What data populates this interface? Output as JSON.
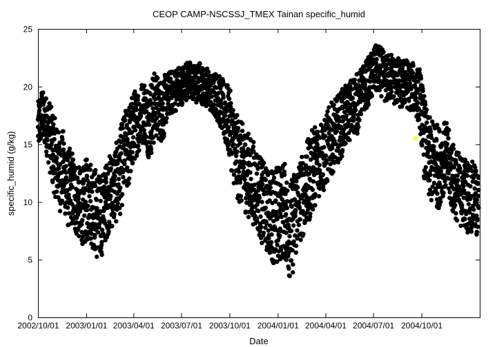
{
  "chart_data": {
    "type": "scatter",
    "title": "CEOP CAMP-NSCSSJ_TMEX Tainan  specific_humid",
    "xlabel": "Date",
    "ylabel": "specific_humid (g/kg)",
    "xlim": [
      "2002-10-01",
      "2005-01-20"
    ],
    "ylim": [
      0,
      25
    ],
    "grid": false,
    "legend": "none",
    "colors": {
      "points": "#000000",
      "highlight": "#ffff00"
    },
    "x_ticks": [
      "2002/10/01",
      "2003/01/01",
      "2003/04/01",
      "2003/07/01",
      "2003/10/01",
      "2004/01/01",
      "2004/04/01",
      "2004/07/01",
      "2004/10/01"
    ],
    "y_ticks": [
      "0",
      "5",
      "10",
      "15",
      "20",
      "25"
    ],
    "series": [
      {
        "marker": "filled-circle",
        "x": [
          "2002-10-01",
          "2002-10-08",
          "2002-10-15",
          "2002-10-22",
          "2002-10-29",
          "2002-11-05",
          "2002-11-12",
          "2002-11-19",
          "2002-11-26",
          "2002-12-03",
          "2002-12-10",
          "2002-12-17",
          "2002-12-24",
          "2002-12-31",
          "2003-01-07",
          "2003-01-14",
          "2003-01-21",
          "2003-01-28",
          "2003-02-04",
          "2003-02-11",
          "2003-02-18",
          "2003-02-25",
          "2003-03-04",
          "2003-03-11",
          "2003-03-18",
          "2003-03-25",
          "2003-04-01",
          "2003-04-08",
          "2003-04-15",
          "2003-04-22",
          "2003-04-29",
          "2003-05-06",
          "2003-05-13",
          "2003-05-20",
          "2003-05-27",
          "2003-06-03",
          "2003-06-10",
          "2003-06-17",
          "2003-06-24",
          "2003-07-01",
          "2003-07-08",
          "2003-07-15",
          "2003-07-22",
          "2003-07-29",
          "2003-08-05",
          "2003-08-12",
          "2003-08-19",
          "2003-08-26",
          "2003-09-02",
          "2003-09-09",
          "2003-09-16",
          "2003-09-23",
          "2003-09-30",
          "2003-10-07",
          "2003-10-14",
          "2003-10-21",
          "2003-10-28",
          "2003-11-04",
          "2003-11-11",
          "2003-11-18",
          "2003-11-25",
          "2003-12-02",
          "2003-12-09",
          "2003-12-16",
          "2003-12-23",
          "2003-12-30",
          "2004-01-06",
          "2004-01-13",
          "2004-01-20",
          "2004-01-27",
          "2004-02-03",
          "2004-02-10",
          "2004-02-17",
          "2004-02-24",
          "2004-03-02",
          "2004-03-09",
          "2004-03-16",
          "2004-03-23",
          "2004-03-30",
          "2004-04-06",
          "2004-04-13",
          "2004-04-20",
          "2004-04-27",
          "2004-05-04",
          "2004-05-11",
          "2004-05-18",
          "2004-05-25",
          "2004-06-01",
          "2004-06-08",
          "2004-06-15",
          "2004-06-22",
          "2004-06-29",
          "2004-07-06",
          "2004-07-13",
          "2004-07-20",
          "2004-07-27",
          "2004-08-03",
          "2004-08-10",
          "2004-08-17",
          "2004-08-24",
          "2004-08-31",
          "2004-09-07",
          "2004-09-14",
          "2004-09-21",
          "2004-09-28",
          "2004-10-05",
          "2004-10-12",
          "2004-10-19",
          "2004-10-26",
          "2004-11-02",
          "2004-11-09",
          "2004-11-16",
          "2004-11-23",
          "2004-11-30",
          "2004-12-07",
          "2004-12-14",
          "2004-12-21",
          "2004-12-28",
          "2005-01-04",
          "2005-01-11",
          "2005-01-18"
        ],
        "y": [
          16.5,
          17.5,
          17.0,
          16.0,
          14.5,
          13.5,
          12.5,
          13.0,
          11.0,
          11.5,
          10.5,
          10.0,
          9.5,
          10.0,
          10.5,
          9.5,
          9.0,
          8.5,
          9.5,
          10.5,
          11.0,
          11.5,
          12.0,
          13.5,
          14.5,
          15.0,
          16.5,
          17.0,
          17.5,
          18.0,
          17.0,
          17.5,
          18.5,
          18.0,
          18.0,
          19.0,
          19.5,
          19.5,
          20.0,
          20.0,
          20.5,
          20.5,
          20.5,
          20.0,
          20.5,
          20.0,
          20.0,
          19.5,
          19.5,
          19.0,
          18.5,
          17.5,
          17.0,
          15.5,
          14.0,
          13.5,
          13.0,
          12.5,
          12.0,
          11.5,
          11.0,
          10.0,
          9.5,
          9.0,
          9.0,
          8.5,
          9.0,
          9.5,
          8.0,
          7.5,
          9.0,
          10.0,
          10.5,
          11.5,
          12.0,
          13.0,
          13.5,
          14.0,
          14.0,
          15.0,
          15.5,
          16.0,
          16.5,
          17.0,
          17.5,
          18.0,
          18.5,
          18.5,
          19.5,
          20.0,
          20.5,
          21.0,
          21.5,
          21.5,
          21.0,
          20.5,
          21.0,
          20.5,
          20.5,
          20.0,
          20.5,
          20.0,
          20.0,
          19.5,
          19.0,
          16.0,
          14.0,
          13.5,
          13.5,
          13.0,
          13.5,
          14.0,
          13.0,
          12.0,
          11.5,
          11.0,
          11.0,
          10.5,
          10.5,
          10.0,
          9.5
        ],
        "spread": [
          2.0,
          2.2,
          2.2,
          2.8,
          3.2,
          3.2,
          3.2,
          3.2,
          3.2,
          3.2,
          3.2,
          3.0,
          3.0,
          3.5,
          3.5,
          3.5,
          3.8,
          3.5,
          3.2,
          3.2,
          3.2,
          3.2,
          3.5,
          3.5,
          3.5,
          3.5,
          3.0,
          2.8,
          2.8,
          2.5,
          3.0,
          3.2,
          2.8,
          2.5,
          2.8,
          2.0,
          1.8,
          1.8,
          1.8,
          1.6,
          1.6,
          1.6,
          1.6,
          1.6,
          1.6,
          1.6,
          1.6,
          1.6,
          1.8,
          2.0,
          2.2,
          2.6,
          3.0,
          3.2,
          3.5,
          3.5,
          3.5,
          3.5,
          3.5,
          3.5,
          3.5,
          3.5,
          3.5,
          3.5,
          4.0,
          4.5,
          4.0,
          4.0,
          4.0,
          4.2,
          4.0,
          3.5,
          3.5,
          3.5,
          3.5,
          3.5,
          3.2,
          3.2,
          3.0,
          3.0,
          3.0,
          2.8,
          2.8,
          2.8,
          2.5,
          2.5,
          2.5,
          2.5,
          2.0,
          2.0,
          2.0,
          2.0,
          2.0,
          2.0,
          2.0,
          2.0,
          2.0,
          2.0,
          2.0,
          2.0,
          2.0,
          2.0,
          2.0,
          2.0,
          2.5,
          3.5,
          3.5,
          3.5,
          3.5,
          3.5,
          3.0,
          3.0,
          3.0,
          3.0,
          3.0,
          3.0,
          3.0,
          3.0,
          3.0,
          3.0,
          3.0
        ]
      }
    ],
    "highlight_point": {
      "x": "2004-09-20",
      "y": 15.5
    }
  }
}
